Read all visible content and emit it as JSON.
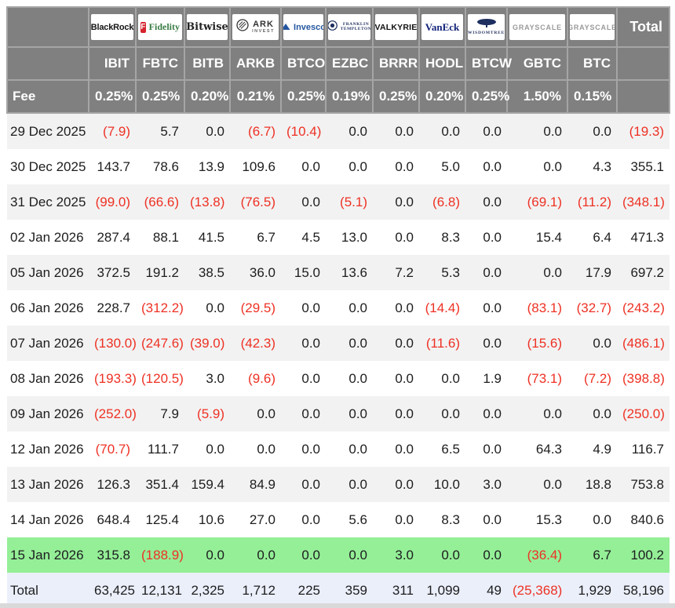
{
  "colors": {
    "header_bg": "#808080",
    "header_border": "#a5a5a5",
    "negative_red": "#ee3124",
    "row_stripe": "#f2f2f2",
    "highlight_green": "#94ef97",
    "total_row_bg": "#ebeffa",
    "bottom_bar": "#d9d9d9"
  },
  "chart_data": {
    "type": "table",
    "fee_row_label": "Fee",
    "total_column_label": "Total",
    "total_row_label": "Total",
    "columns": [
      {
        "provider": "BlackRock",
        "logo": "blackrock",
        "logo_text": "BlackRock",
        "ticker": "IBIT",
        "fee": "0.25%"
      },
      {
        "provider": "Fidelity",
        "logo": "fidelity",
        "logo_text": "Fidelity",
        "logo_icon_letter": "F",
        "ticker": "FBTC",
        "fee": "0.25%"
      },
      {
        "provider": "Bitwise",
        "logo": "bitwise",
        "logo_text": "Bitwise",
        "ticker": "BITB",
        "fee": "0.20%"
      },
      {
        "provider": "ARK Invest",
        "logo": "ark",
        "logo_text": "ARK",
        "logo_subtext": "INVEST",
        "ticker": "ARKB",
        "fee": "0.21%"
      },
      {
        "provider": "Invesco",
        "logo": "invesco",
        "logo_text": "Invesco",
        "ticker": "BTCO",
        "fee": "0.25%"
      },
      {
        "provider": "Franklin Templeton",
        "logo": "franklin",
        "logo_text": "FRANKLIN",
        "logo_subtext": "TEMPLETON",
        "ticker": "EZBC",
        "fee": "0.19%"
      },
      {
        "provider": "Valkyrie",
        "logo": "valkyrie",
        "logo_text": "VALKYRIE",
        "ticker": "BRRR",
        "fee": "0.25%"
      },
      {
        "provider": "VanEck",
        "logo": "vaneck",
        "logo_text": "VanEck",
        "ticker": "HODL",
        "fee": "0.20%"
      },
      {
        "provider": "WisdomTree",
        "logo": "wisdomtree",
        "logo_text": "WISDOMTREE",
        "ticker": "BTCW",
        "fee": "0.25%"
      },
      {
        "provider": "Grayscale",
        "logo": "grayscale",
        "logo_text": "GRAYSCALE",
        "ticker": "GBTC",
        "fee": "1.50%"
      },
      {
        "provider": "Grayscale",
        "logo": "grayscale",
        "logo_text": "GRAYSCALE",
        "ticker": "BTC",
        "fee": "0.15%"
      }
    ],
    "rows": [
      {
        "date": "29 Dec 2025",
        "highlight": false,
        "values": [
          "(7.9)",
          "5.7",
          "0.0",
          "(6.7)",
          "(10.4)",
          "0.0",
          "0.0",
          "0.0",
          "0.0",
          "0.0",
          "0.0",
          "(19.3)"
        ]
      },
      {
        "date": "30 Dec 2025",
        "highlight": false,
        "values": [
          "143.7",
          "78.6",
          "13.9",
          "109.6",
          "0.0",
          "0.0",
          "0.0",
          "5.0",
          "0.0",
          "0.0",
          "4.3",
          "355.1"
        ]
      },
      {
        "date": "31 Dec 2025",
        "highlight": false,
        "values": [
          "(99.0)",
          "(66.6)",
          "(13.8)",
          "(76.5)",
          "0.0",
          "(5.1)",
          "0.0",
          "(6.8)",
          "0.0",
          "(69.1)",
          "(11.2)",
          "(348.1)"
        ]
      },
      {
        "date": "02 Jan 2026",
        "highlight": false,
        "values": [
          "287.4",
          "88.1",
          "41.5",
          "6.7",
          "4.5",
          "13.0",
          "0.0",
          "8.3",
          "0.0",
          "15.4",
          "6.4",
          "471.3"
        ]
      },
      {
        "date": "05 Jan 2026",
        "highlight": false,
        "values": [
          "372.5",
          "191.2",
          "38.5",
          "36.0",
          "15.0",
          "13.6",
          "7.2",
          "5.3",
          "0.0",
          "0.0",
          "17.9",
          "697.2"
        ]
      },
      {
        "date": "06 Jan 2026",
        "highlight": false,
        "values": [
          "228.7",
          "(312.2)",
          "0.0",
          "(29.5)",
          "0.0",
          "0.0",
          "0.0",
          "(14.4)",
          "0.0",
          "(83.1)",
          "(32.7)",
          "(243.2)"
        ]
      },
      {
        "date": "07 Jan 2026",
        "highlight": false,
        "values": [
          "(130.0)",
          "(247.6)",
          "(39.0)",
          "(42.3)",
          "0.0",
          "0.0",
          "0.0",
          "(11.6)",
          "0.0",
          "(15.6)",
          "0.0",
          "(486.1)"
        ]
      },
      {
        "date": "08 Jan 2026",
        "highlight": false,
        "values": [
          "(193.3)",
          "(120.5)",
          "3.0",
          "(9.6)",
          "0.0",
          "0.0",
          "0.0",
          "0.0",
          "1.9",
          "(73.1)",
          "(7.2)",
          "(398.8)"
        ]
      },
      {
        "date": "09 Jan 2026",
        "highlight": false,
        "values": [
          "(252.0)",
          "7.9",
          "(5.9)",
          "0.0",
          "0.0",
          "0.0",
          "0.0",
          "0.0",
          "0.0",
          "0.0",
          "0.0",
          "(250.0)"
        ]
      },
      {
        "date": "12 Jan 2026",
        "highlight": false,
        "values": [
          "(70.7)",
          "111.7",
          "0.0",
          "0.0",
          "0.0",
          "0.0",
          "0.0",
          "6.5",
          "0.0",
          "64.3",
          "4.9",
          "116.7"
        ]
      },
      {
        "date": "13 Jan 2026",
        "highlight": false,
        "values": [
          "126.3",
          "351.4",
          "159.4",
          "84.9",
          "0.0",
          "0.0",
          "0.0",
          "10.0",
          "3.0",
          "0.0",
          "18.8",
          "753.8"
        ]
      },
      {
        "date": "14 Jan 2026",
        "highlight": false,
        "values": [
          "648.4",
          "125.4",
          "10.6",
          "27.0",
          "0.0",
          "5.6",
          "0.0",
          "8.3",
          "0.0",
          "15.3",
          "0.0",
          "840.6"
        ]
      },
      {
        "date": "15 Jan 2026",
        "highlight": true,
        "values": [
          "315.8",
          "(188.9)",
          "0.0",
          "0.0",
          "0.0",
          "0.0",
          "3.0",
          "0.0",
          "0.0",
          "(36.4)",
          "6.7",
          "100.2"
        ]
      }
    ],
    "total_values": [
      "63,425",
      "12,131",
      "2,325",
      "1,712",
      "225",
      "359",
      "311",
      "1,099",
      "49",
      "(25,368)",
      "1,929",
      "58,196"
    ]
  }
}
